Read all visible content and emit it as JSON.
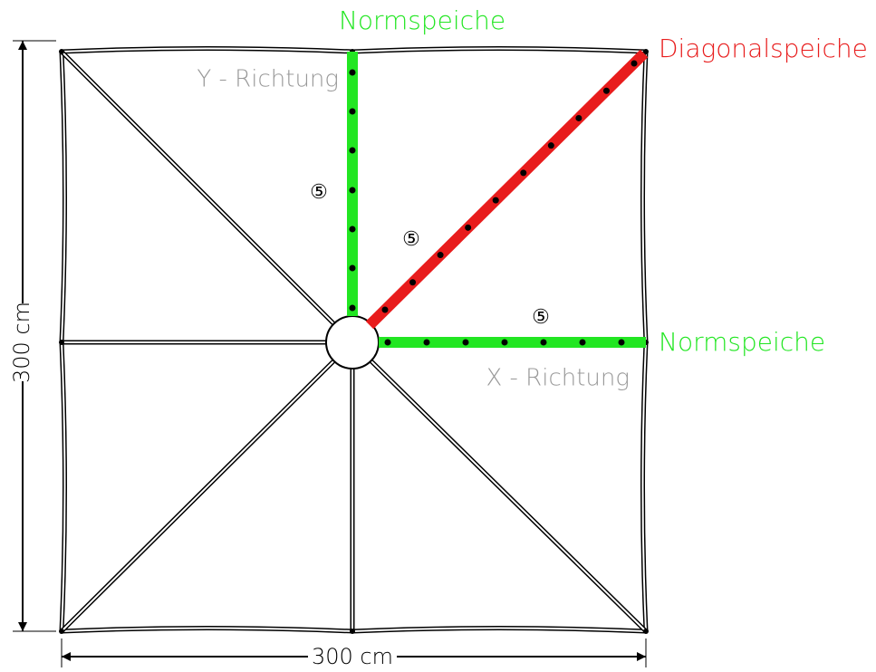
{
  "labels": {
    "top_spoke": "Normspeiche",
    "diagonal_spoke": "Diagonalspeiche",
    "right_spoke": "Normspeiche",
    "y_direction": "Y - Richtung",
    "x_direction": "X - Richtung"
  },
  "markers": [
    "⑤",
    "⑤",
    "⑤"
  ],
  "dimensions": {
    "height": "300 cm",
    "width": "300 cm"
  }
}
